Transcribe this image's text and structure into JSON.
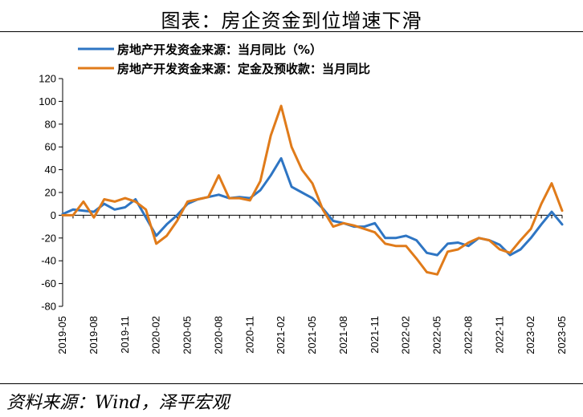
{
  "chart_data": {
    "type": "line",
    "title": "图表：房企资金到位增速下滑",
    "source": "资料来源：Wind，泽平宏观",
    "xlabel": "",
    "ylabel": "",
    "ylim": [
      -80,
      120
    ],
    "yticks": [
      120,
      100,
      80,
      60,
      40,
      20,
      0,
      -20,
      -40,
      -60,
      -80
    ],
    "grid": false,
    "legend_position": "top-left",
    "x": [
      "2019-05",
      "2019-06",
      "2019-07",
      "2019-08",
      "2019-09",
      "2019-10",
      "2019-11",
      "2019-12",
      "2020-01",
      "2020-02",
      "2020-03",
      "2020-04",
      "2020-05",
      "2020-06",
      "2020-07",
      "2020-08",
      "2020-09",
      "2020-10",
      "2020-11",
      "2020-12",
      "2021-01",
      "2021-02",
      "2021-03",
      "2021-04",
      "2021-05",
      "2021-06",
      "2021-07",
      "2021-08",
      "2021-09",
      "2021-10",
      "2021-11",
      "2021-12",
      "2022-01",
      "2022-02",
      "2022-03",
      "2022-04",
      "2022-05",
      "2022-06",
      "2022-07",
      "2022-08",
      "2022-09",
      "2022-10",
      "2022-11",
      "2022-12",
      "2023-01",
      "2023-02",
      "2023-03",
      "2023-04",
      "2023-05"
    ],
    "xtick_labels": [
      "2019-05",
      "2019-08",
      "2019-11",
      "2020-02",
      "2020-05",
      "2020-08",
      "2020-11",
      "2021-02",
      "2021-05",
      "2021-08",
      "2021-11",
      "2022-02",
      "2022-05",
      "2022-08",
      "2022-11",
      "2023-02",
      "2023-05"
    ],
    "series": [
      {
        "name": "房地产开发资金来源：当月同比（%）",
        "color": "#2E75C3",
        "values": [
          1,
          5,
          4,
          3,
          10,
          5,
          7,
          14,
          -2,
          -18,
          -8,
          0,
          10,
          14,
          16,
          18,
          15,
          16,
          15,
          22,
          35,
          50,
          25,
          20,
          15,
          6,
          -5,
          -7,
          -10,
          -10,
          -7,
          -20,
          -20,
          -18,
          -22,
          -33,
          -35,
          -25,
          -24,
          -27,
          -20,
          -22,
          -26,
          -35,
          -30,
          -20,
          -8,
          3,
          -8
        ]
      },
      {
        "name": "房地产开发资金来源：定金及预收款：当月同比",
        "color": "#E07B1A",
        "values": [
          0,
          0,
          12,
          -2,
          14,
          12,
          15,
          12,
          5,
          -25,
          -18,
          -5,
          12,
          14,
          16,
          35,
          15,
          15,
          13,
          30,
          70,
          96,
          60,
          40,
          28,
          5,
          -10,
          -7,
          -9,
          -12,
          -15,
          -25,
          -27,
          -27,
          -38,
          -50,
          -52,
          -32,
          -30,
          -24,
          -20,
          -22,
          -30,
          -33,
          -22,
          -12,
          10,
          28,
          4
        ]
      }
    ]
  }
}
